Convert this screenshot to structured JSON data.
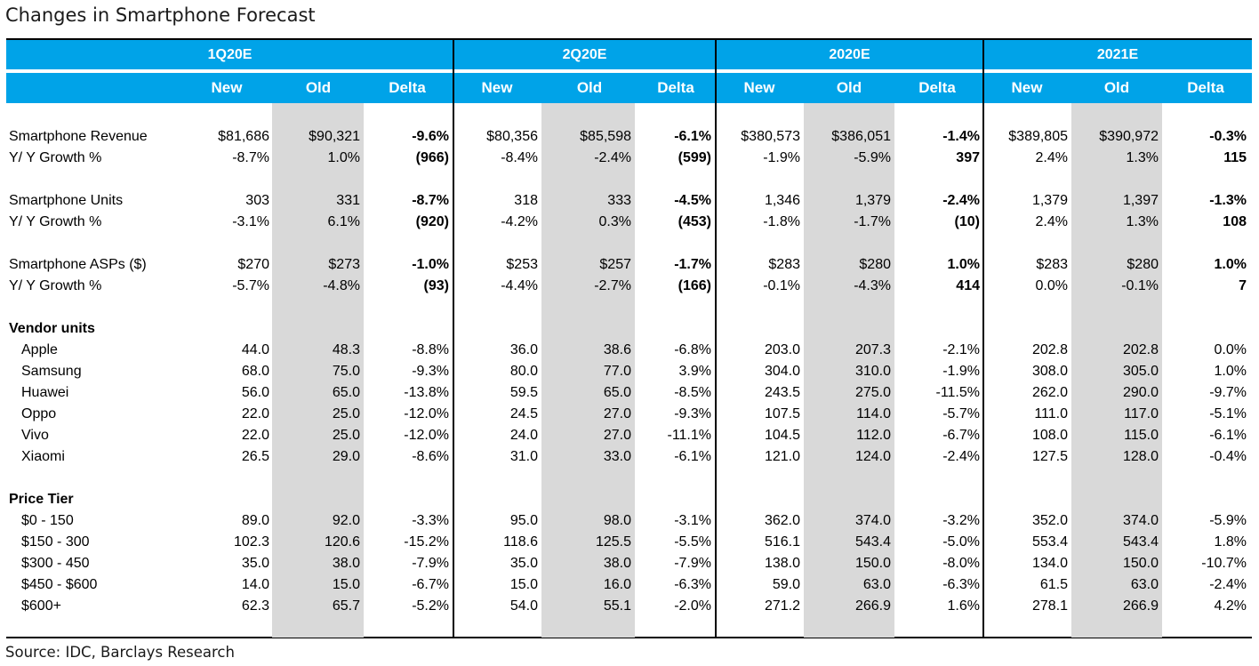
{
  "title": "Changes in Smartphone Forecast",
  "source": "Source: IDC, Barclays Research",
  "colors": {
    "header_band": "#00a3e8",
    "old_shade": "#d9d9d9",
    "header_text": "#ffffff"
  },
  "chart_data": {
    "type": "table",
    "periods": [
      "1Q20E",
      "2Q20E",
      "2020E",
      "2021E"
    ],
    "column_headers": [
      "New",
      "Old",
      "Delta"
    ],
    "rows": [
      {
        "label": "Smartphone Revenue",
        "values": [
          "$81,686",
          "$90,321",
          "-9.6%",
          "$80,356",
          "$85,598",
          "-6.1%",
          "$380,573",
          "$386,051",
          "-1.4%",
          "$389,805",
          "$390,972",
          "-0.3%"
        ]
      },
      {
        "label": "Y/ Y Growth %",
        "values": [
          "-8.7%",
          "1.0%",
          "(966)",
          "-8.4%",
          "-2.4%",
          "(599)",
          "-1.9%",
          "-5.9%",
          "397",
          "2.4%",
          "1.3%",
          "115"
        ]
      },
      {
        "label": "Smartphone Units",
        "values": [
          "303",
          "331",
          "-8.7%",
          "318",
          "333",
          "-4.5%",
          "1,346",
          "1,379",
          "-2.4%",
          "1,379",
          "1,397",
          "-1.3%"
        ]
      },
      {
        "label": "Y/ Y Growth %",
        "values": [
          "-3.1%",
          "6.1%",
          "(920)",
          "-4.2%",
          "0.3%",
          "(453)",
          "-1.8%",
          "-1.7%",
          "(10)",
          "2.4%",
          "1.3%",
          "108"
        ]
      },
      {
        "label": "Smartphone ASPs ($)",
        "values": [
          "$270",
          "$273",
          "-1.0%",
          "$253",
          "$257",
          "-1.7%",
          "$283",
          "$280",
          "1.0%",
          "$283",
          "$280",
          "1.0%"
        ]
      },
      {
        "label": "Y/ Y Growth %",
        "values": [
          "-5.7%",
          "-4.8%",
          "(93)",
          "-4.4%",
          "-2.7%",
          "(166)",
          "-0.1%",
          "-4.3%",
          "414",
          "0.0%",
          "-0.1%",
          "7"
        ]
      },
      {
        "label": "Vendor units",
        "values": []
      },
      {
        "label": "Apple",
        "values": [
          "44.0",
          "48.3",
          "-8.8%",
          "36.0",
          "38.6",
          "-6.8%",
          "203.0",
          "207.3",
          "-2.1%",
          "202.8",
          "202.8",
          "0.0%"
        ]
      },
      {
        "label": "Samsung",
        "values": [
          "68.0",
          "75.0",
          "-9.3%",
          "80.0",
          "77.0",
          "3.9%",
          "304.0",
          "310.0",
          "-1.9%",
          "308.0",
          "305.0",
          "1.0%"
        ]
      },
      {
        "label": "Huawei",
        "values": [
          "56.0",
          "65.0",
          "-13.8%",
          "59.5",
          "65.0",
          "-8.5%",
          "243.5",
          "275.0",
          "-11.5%",
          "262.0",
          "290.0",
          "-9.7%"
        ]
      },
      {
        "label": "Oppo",
        "values": [
          "22.0",
          "25.0",
          "-12.0%",
          "24.5",
          "27.0",
          "-9.3%",
          "107.5",
          "114.0",
          "-5.7%",
          "111.0",
          "117.0",
          "-5.1%"
        ]
      },
      {
        "label": "Vivo",
        "values": [
          "22.0",
          "25.0",
          "-12.0%",
          "24.0",
          "27.0",
          "-11.1%",
          "104.5",
          "112.0",
          "-6.7%",
          "108.0",
          "115.0",
          "-6.1%"
        ]
      },
      {
        "label": "Xiaomi",
        "values": [
          "26.5",
          "29.0",
          "-8.6%",
          "31.0",
          "33.0",
          "-6.1%",
          "121.0",
          "124.0",
          "-2.4%",
          "127.5",
          "128.0",
          "-0.4%"
        ]
      },
      {
        "label": "Price Tier",
        "values": []
      },
      {
        "label": "$0 - 150",
        "values": [
          "89.0",
          "92.0",
          "-3.3%",
          "95.0",
          "98.0",
          "-3.1%",
          "362.0",
          "374.0",
          "-3.2%",
          "352.0",
          "374.0",
          "-5.9%"
        ]
      },
      {
        "label": "$150 - 300",
        "values": [
          "102.3",
          "120.6",
          "-15.2%",
          "118.6",
          "125.5",
          "-5.5%",
          "516.1",
          "543.4",
          "-5.0%",
          "553.4",
          "543.4",
          "1.8%"
        ]
      },
      {
        "label": "$300 - 450",
        "values": [
          "35.0",
          "38.0",
          "-7.9%",
          "35.0",
          "38.0",
          "-7.9%",
          "138.0",
          "150.0",
          "-8.0%",
          "134.0",
          "150.0",
          "-10.7%"
        ]
      },
      {
        "label": "$450 - $600",
        "values": [
          "14.0",
          "15.0",
          "-6.7%",
          "15.0",
          "16.0",
          "-6.3%",
          "59.0",
          "63.0",
          "-6.3%",
          "61.5",
          "63.0",
          "-2.4%"
        ]
      },
      {
        "label": "$600+",
        "values": [
          "62.3",
          "65.7",
          "-5.2%",
          "54.0",
          "55.1",
          "-2.0%",
          "271.2",
          "266.9",
          "1.6%",
          "278.1",
          "266.9",
          "4.2%"
        ]
      }
    ]
  }
}
